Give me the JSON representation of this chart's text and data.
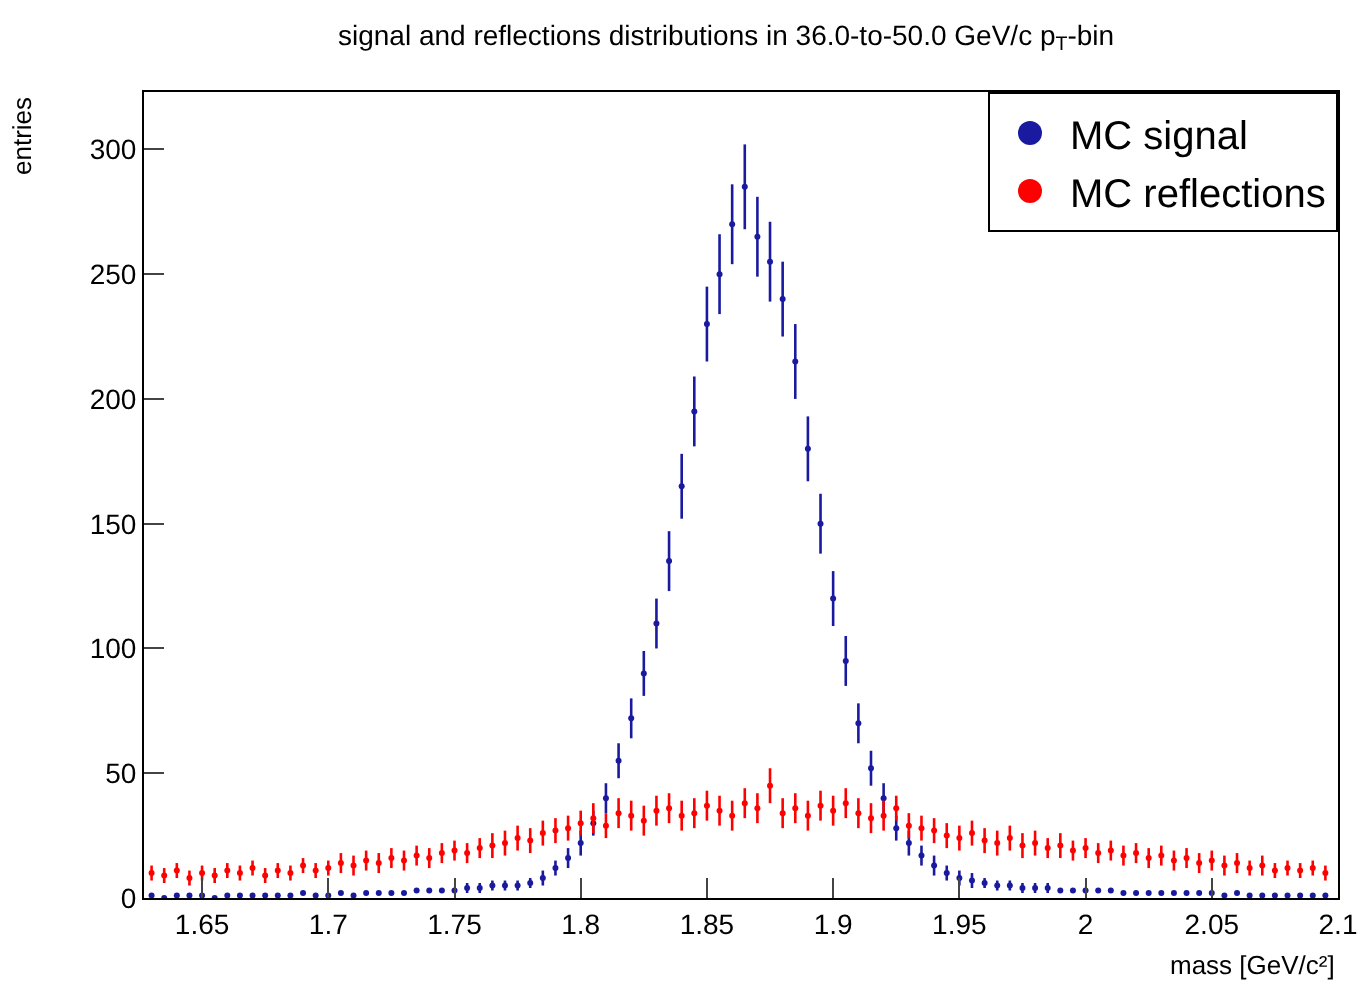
{
  "chart_data": {
    "type": "scatter",
    "title": "signal and reflections distributions in 36.0-to-50.0 GeV/c p$_{T}$-bin",
    "xlabel": "mass [GeV/c²]",
    "ylabel": "entries",
    "x": [
      1.63,
      1.635,
      1.64,
      1.645,
      1.65,
      1.655,
      1.66,
      1.665,
      1.67,
      1.675,
      1.68,
      1.685,
      1.69,
      1.695,
      1.7,
      1.705,
      1.71,
      1.715,
      1.72,
      1.725,
      1.73,
      1.735,
      1.74,
      1.745,
      1.75,
      1.755,
      1.76,
      1.765,
      1.77,
      1.775,
      1.78,
      1.785,
      1.79,
      1.795,
      1.8,
      1.805,
      1.81,
      1.815,
      1.82,
      1.825,
      1.83,
      1.835,
      1.84,
      1.845,
      1.85,
      1.855,
      1.86,
      1.865,
      1.87,
      1.875,
      1.88,
      1.885,
      1.89,
      1.895,
      1.9,
      1.905,
      1.91,
      1.915,
      1.92,
      1.925,
      1.93,
      1.935,
      1.94,
      1.945,
      1.95,
      1.955,
      1.96,
      1.965,
      1.97,
      1.975,
      1.98,
      1.985,
      1.99,
      1.995,
      2.0,
      2.005,
      2.01,
      2.015,
      2.02,
      2.025,
      2.03,
      2.035,
      2.04,
      2.045,
      2.05,
      2.055,
      2.06,
      2.065,
      2.07,
      2.075,
      2.08,
      2.085,
      2.09,
      2.095
    ],
    "series": [
      {
        "name": "MC signal",
        "color": "#1a1aa0",
        "values": [
          1,
          0,
          1,
          1,
          1,
          0,
          1,
          1,
          1,
          1,
          1,
          1,
          2,
          1,
          1,
          2,
          1,
          2,
          2,
          2,
          2,
          3,
          3,
          3,
          3,
          4,
          4,
          5,
          5,
          5,
          6,
          8,
          12,
          16,
          22,
          30,
          40,
          55,
          72,
          90,
          110,
          135,
          165,
          195,
          230,
          250,
          270,
          285,
          265,
          255,
          240,
          215,
          180,
          150,
          120,
          95,
          70,
          52,
          40,
          28,
          22,
          17,
          13,
          10,
          8,
          7,
          6,
          5,
          5,
          4,
          4,
          4,
          3,
          3,
          3,
          3,
          3,
          2,
          2,
          2,
          2,
          2,
          2,
          2,
          2,
          1,
          2,
          1,
          1,
          1,
          1,
          1,
          1,
          1
        ],
        "errors": [
          null,
          null,
          null,
          null,
          null,
          null,
          null,
          null,
          null,
          null,
          null,
          null,
          null,
          null,
          null,
          null,
          null,
          null,
          null,
          null,
          null,
          null,
          null,
          null,
          null,
          2,
          2,
          2,
          2,
          2,
          2,
          3,
          3,
          4,
          5,
          5,
          6,
          7,
          8,
          9,
          10,
          12,
          13,
          14,
          15,
          16,
          16,
          17,
          16,
          16,
          15,
          15,
          13,
          12,
          11,
          10,
          8,
          7,
          6,
          5,
          5,
          4,
          4,
          3,
          3,
          3,
          2,
          2,
          2,
          2,
          2,
          2,
          null,
          null,
          null,
          null,
          null,
          null,
          null,
          null,
          null,
          null,
          null,
          null,
          null,
          null,
          null,
          null,
          null,
          null,
          null,
          null,
          null,
          null
        ]
      },
      {
        "name": "MC reflections",
        "color": "#ff0000",
        "values": [
          10,
          9,
          11,
          8,
          10,
          9,
          11,
          10,
          12,
          9,
          11,
          10,
          13,
          11,
          12,
          14,
          13,
          15,
          14,
          16,
          15,
          17,
          16,
          18,
          19,
          18,
          20,
          21,
          22,
          24,
          23,
          26,
          27,
          28,
          30,
          32,
          29,
          34,
          33,
          31,
          35,
          36,
          33,
          34,
          37,
          35,
          33,
          38,
          36,
          45,
          34,
          36,
          33,
          37,
          35,
          38,
          34,
          32,
          33,
          36,
          29,
          28,
          27,
          25,
          24,
          26,
          23,
          22,
          24,
          21,
          22,
          20,
          21,
          19,
          20,
          18,
          19,
          17,
          18,
          16,
          17,
          15,
          16,
          14,
          15,
          13,
          14,
          12,
          13,
          11,
          12,
          11,
          12,
          10
        ],
        "errors": [
          3,
          3,
          3,
          3,
          3,
          3,
          3,
          3,
          3,
          3,
          3,
          3,
          3,
          3,
          3,
          4,
          4,
          4,
          4,
          4,
          4,
          4,
          4,
          4,
          4,
          4,
          4,
          5,
          5,
          5,
          5,
          5,
          5,
          5,
          5,
          6,
          5,
          6,
          6,
          6,
          6,
          6,
          6,
          6,
          6,
          6,
          6,
          6,
          6,
          7,
          6,
          6,
          6,
          6,
          6,
          6,
          6,
          6,
          6,
          5,
          5,
          5,
          5,
          5,
          5,
          5,
          5,
          5,
          5,
          5,
          5,
          4,
          5,
          4,
          4,
          4,
          4,
          4,
          4,
          4,
          4,
          4,
          4,
          4,
          4,
          4,
          4,
          3,
          4,
          3,
          3,
          3,
          3,
          3
        ]
      }
    ],
    "xlim": [
      1.627,
      2.1
    ],
    "xticks": [
      1.65,
      1.7,
      1.75,
      1.8,
      1.85,
      1.9,
      1.95,
      2,
      2.05,
      2.1
    ],
    "ylim": [
      0,
      323
    ],
    "yticks": [
      0,
      50,
      100,
      150,
      200,
      250,
      300
    ],
    "grid": false,
    "legend": "top right",
    "marker": "circle"
  }
}
